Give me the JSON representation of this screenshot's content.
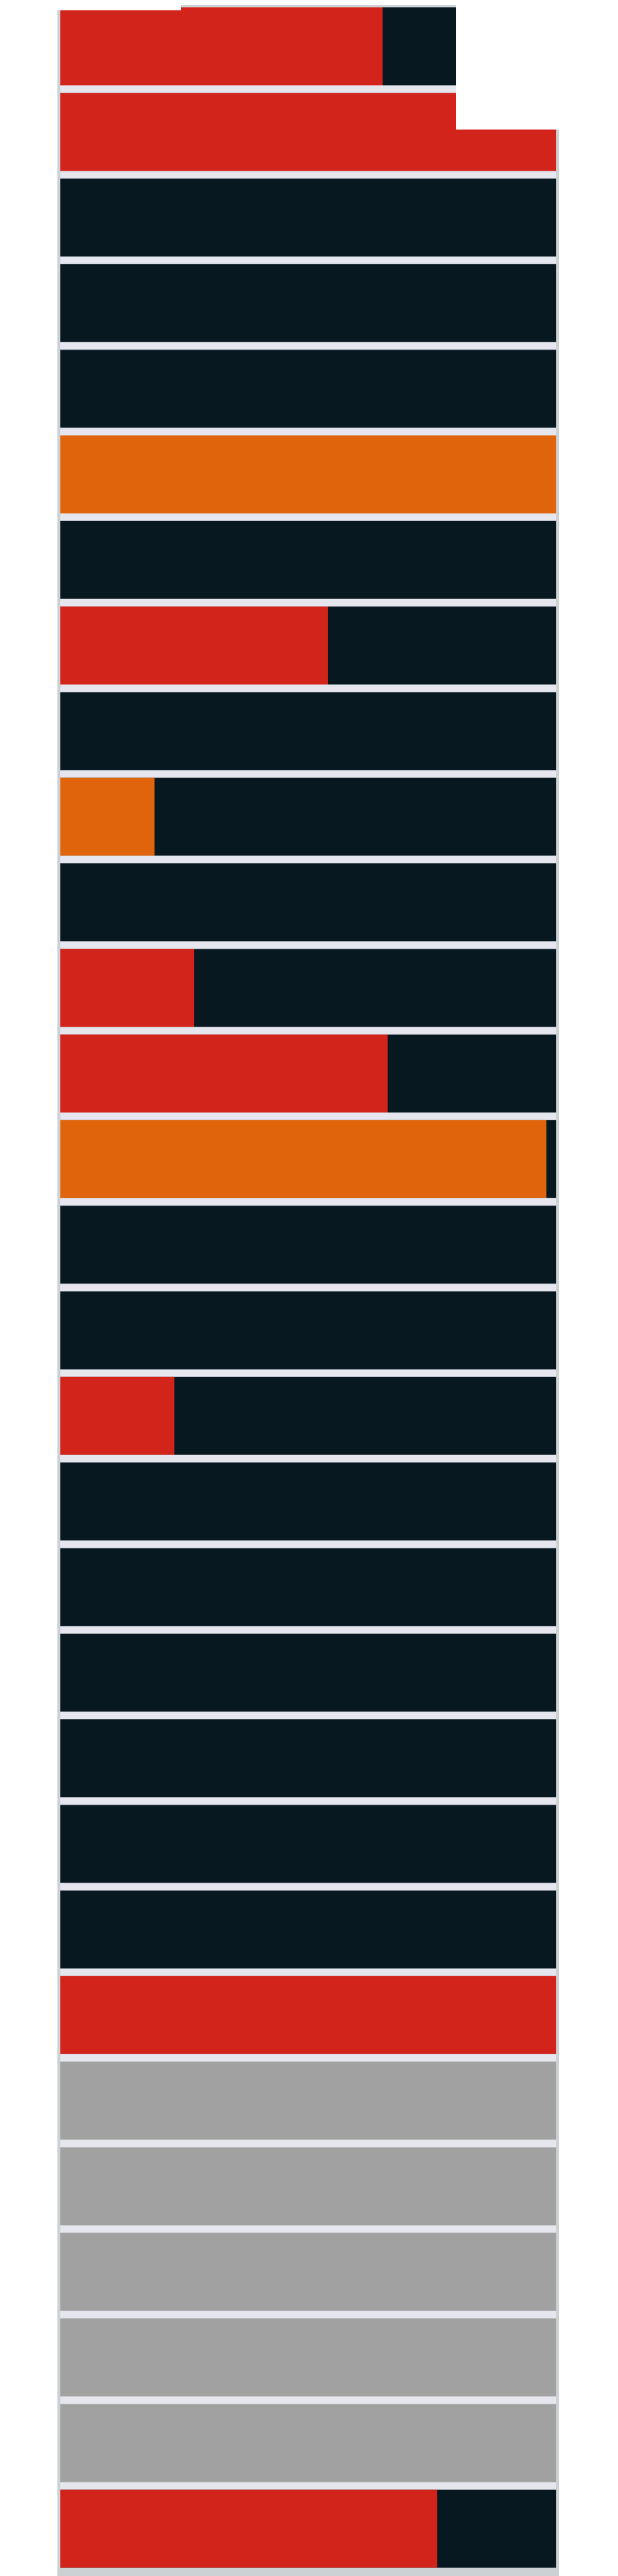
{
  "chart_data": {
    "type": "bar",
    "orientation": "horizontal",
    "title": "",
    "xlabel": "",
    "ylabel": "",
    "xlim": [
      0,
      100
    ],
    "grid": false,
    "legend": "none",
    "colors": {
      "background_track": "#071820",
      "red": "#d3241c",
      "orange": "#e0640c",
      "gray": "#a1a1a1",
      "separator": "#e6e6ef",
      "frame_shadow": "#6c7a84"
    },
    "rows": [
      {
        "value": 65,
        "color": "red",
        "track": "dark"
      },
      {
        "value": 100,
        "color": "red",
        "track": "dark"
      },
      {
        "value": 0,
        "color": "red",
        "track": "dark"
      },
      {
        "value": 0,
        "color": "red",
        "track": "dark"
      },
      {
        "value": 0,
        "color": "red",
        "track": "dark"
      },
      {
        "value": 100,
        "color": "orange",
        "track": "dark"
      },
      {
        "value": 0,
        "color": "red",
        "track": "dark"
      },
      {
        "value": 54,
        "color": "red",
        "track": "dark"
      },
      {
        "value": 0,
        "color": "red",
        "track": "dark"
      },
      {
        "value": 19,
        "color": "orange",
        "track": "dark"
      },
      {
        "value": 0,
        "color": "red",
        "track": "dark"
      },
      {
        "value": 27,
        "color": "red",
        "track": "dark"
      },
      {
        "value": 66,
        "color": "red",
        "track": "dark"
      },
      {
        "value": 98,
        "color": "orange",
        "track": "dark"
      },
      {
        "value": 0,
        "color": "red",
        "track": "dark"
      },
      {
        "value": 0,
        "color": "red",
        "track": "dark"
      },
      {
        "value": 23,
        "color": "red",
        "track": "dark"
      },
      {
        "value": 0,
        "color": "red",
        "track": "dark"
      },
      {
        "value": 0,
        "color": "red",
        "track": "dark"
      },
      {
        "value": 0,
        "color": "red",
        "track": "dark"
      },
      {
        "value": 0,
        "color": "red",
        "track": "dark"
      },
      {
        "value": 0,
        "color": "red",
        "track": "dark"
      },
      {
        "value": 0,
        "color": "red",
        "track": "dark"
      },
      {
        "value": 100,
        "color": "red",
        "track": "dark"
      },
      {
        "value": 100,
        "color": "gray",
        "track": "gray"
      },
      {
        "value": 100,
        "color": "gray",
        "track": "gray"
      },
      {
        "value": 100,
        "color": "gray",
        "track": "gray"
      },
      {
        "value": 100,
        "color": "gray",
        "track": "gray"
      },
      {
        "value": 100,
        "color": "gray",
        "track": "gray"
      },
      {
        "value": 76,
        "color": "red",
        "track": "dark"
      }
    ]
  }
}
